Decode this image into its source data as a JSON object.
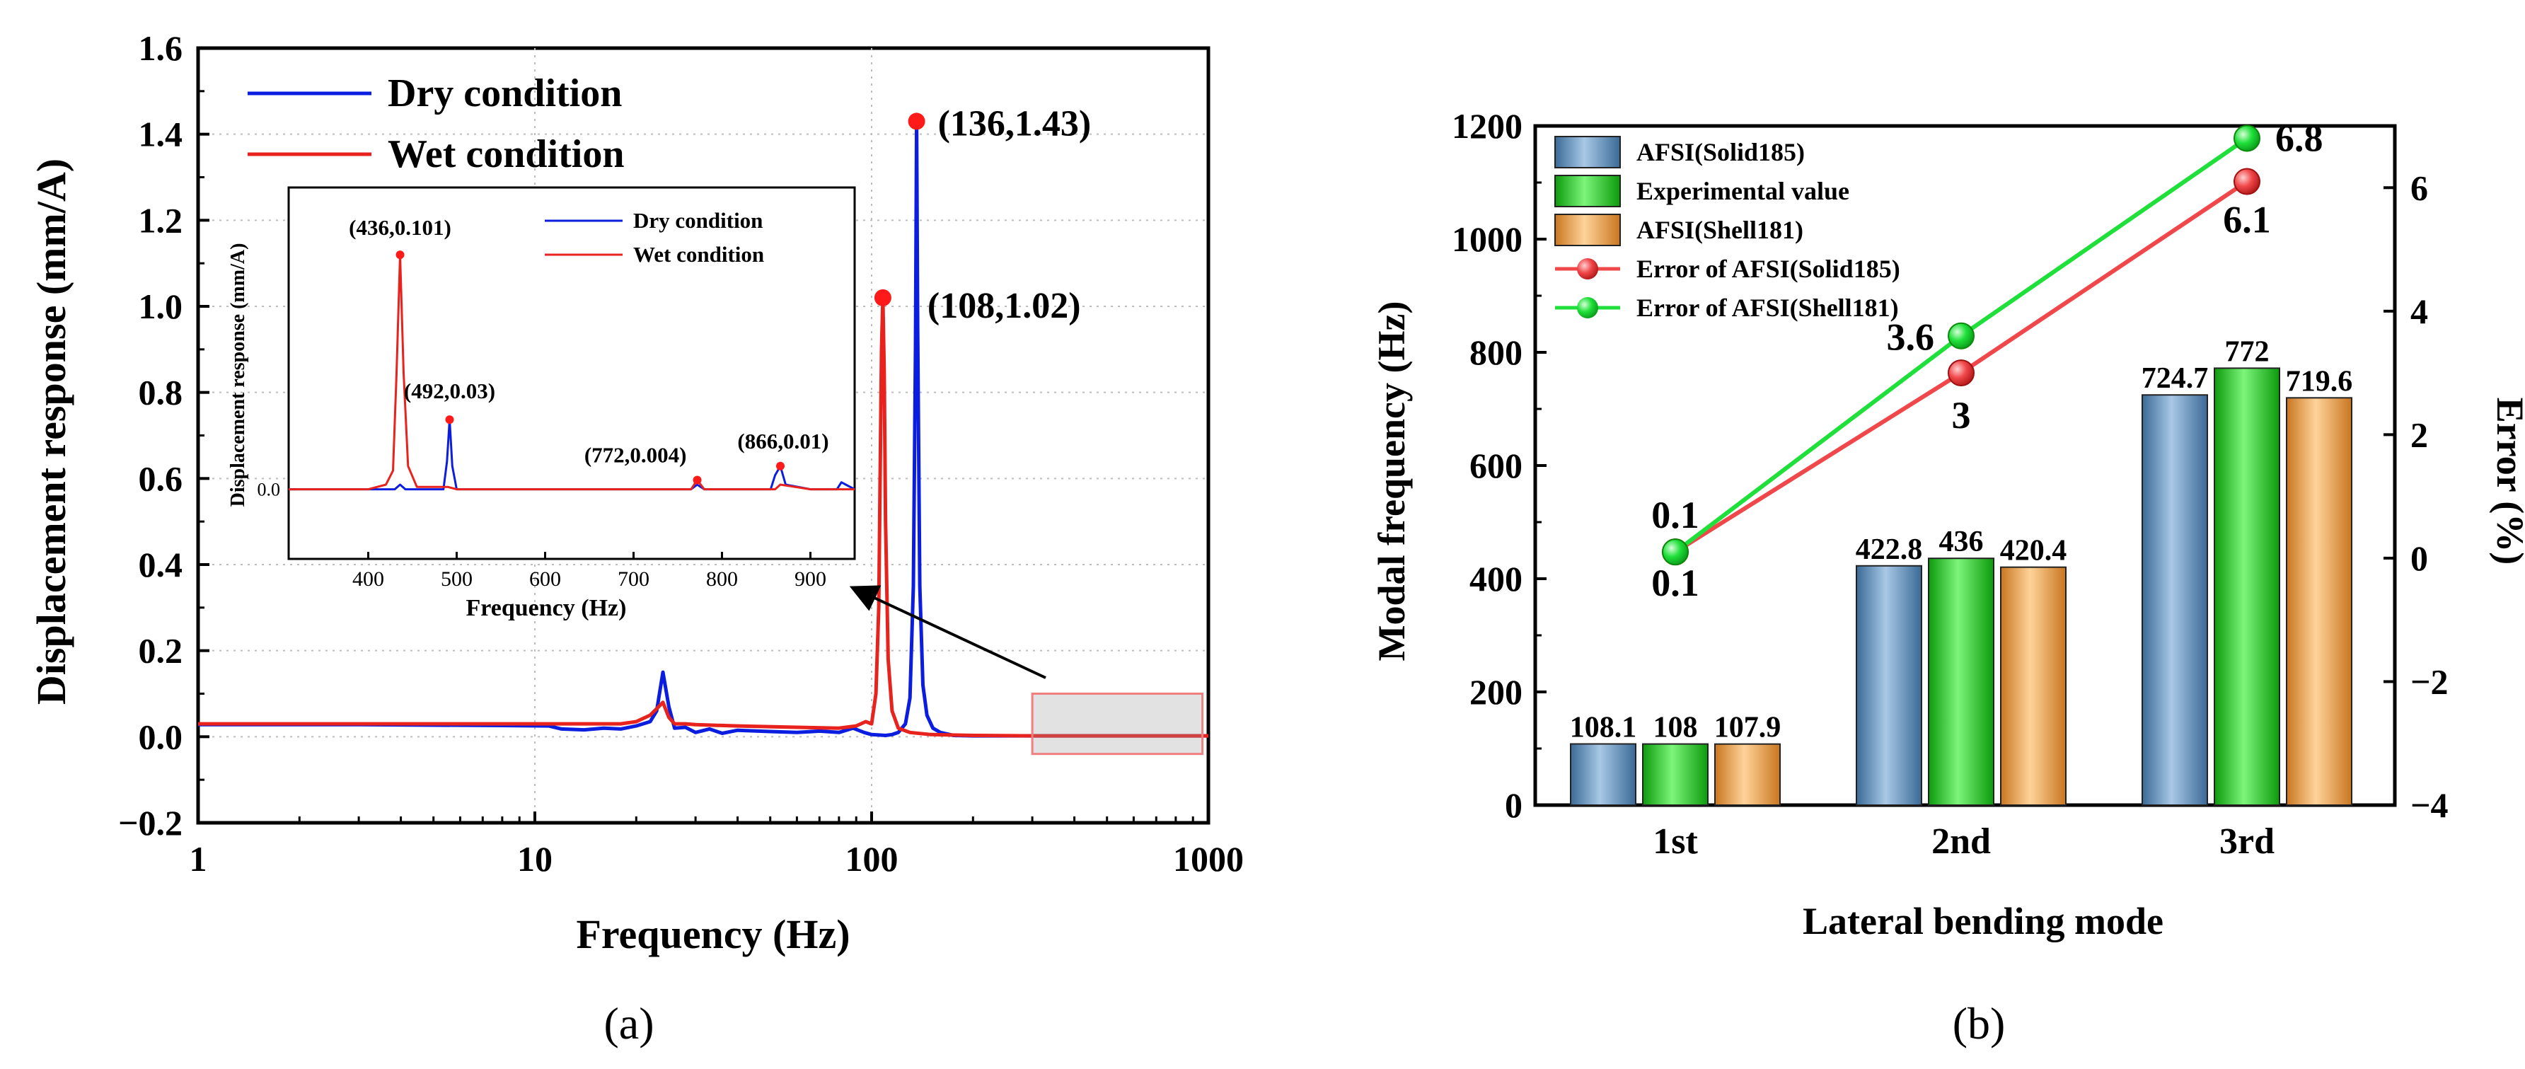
{
  "panel_a": {
    "label": "(a)",
    "chart_data": {
      "type": "line",
      "xscale": "log",
      "xlabel": "Frequency (Hz)",
      "ylabel": "Displacement response (mm/A)",
      "xlim": [
        1,
        1000
      ],
      "ylim": [
        -0.2,
        1.6
      ],
      "xticks": [
        1,
        10,
        100,
        1000
      ],
      "xtick_labels": [
        "1",
        "10",
        "100",
        "1000"
      ],
      "yticks": [
        -0.2,
        0.0,
        0.2,
        0.4,
        0.6,
        0.8,
        1.0,
        1.2,
        1.4,
        1.6
      ],
      "ytick_labels": [
        "−0.2",
        "0.0",
        "0.2",
        "0.4",
        "0.6",
        "0.8",
        "1.0",
        "1.2",
        "1.4",
        "1.6"
      ],
      "legend": [
        "Dry condition",
        "Wet condition"
      ],
      "series": [
        {
          "name": "Dry condition",
          "color": "#0b1ee0",
          "x": [
            1,
            3,
            8,
            11,
            12,
            14,
            16,
            18,
            20,
            22,
            23,
            24,
            25,
            26,
            28,
            30,
            33,
            36,
            40,
            50,
            60,
            70,
            80,
            88,
            95,
            100,
            105,
            110,
            115,
            120,
            126,
            130,
            133,
            135,
            136,
            137,
            139,
            142,
            146,
            152,
            160,
            175,
            200,
            300,
            1000
          ],
          "y": [
            0.028,
            0.028,
            0.026,
            0.025,
            0.018,
            0.016,
            0.02,
            0.018,
            0.025,
            0.035,
            0.06,
            0.15,
            0.07,
            0.02,
            0.022,
            0.01,
            0.018,
            0.008,
            0.015,
            0.012,
            0.01,
            0.013,
            0.01,
            0.02,
            0.01,
            0.005,
            0.004,
            0.003,
            0.005,
            0.01,
            0.03,
            0.09,
            0.35,
            0.9,
            1.43,
            0.95,
            0.35,
            0.12,
            0.05,
            0.02,
            0.01,
            0.003,
            0.002,
            0.002,
            0.002
          ]
        },
        {
          "name": "Wet condition",
          "color": "#e8221c",
          "x": [
            1,
            5,
            10,
            15,
            18,
            20,
            22,
            23,
            24,
            25,
            26,
            28,
            30,
            40,
            60,
            80,
            90,
            96,
            100,
            103,
            105,
            106,
            107,
            108,
            109,
            110,
            112,
            115,
            120,
            130,
            150,
            200,
            300,
            1000
          ],
          "y": [
            0.03,
            0.03,
            0.03,
            0.03,
            0.03,
            0.035,
            0.05,
            0.065,
            0.08,
            0.045,
            0.03,
            0.03,
            0.028,
            0.025,
            0.022,
            0.02,
            0.025,
            0.035,
            0.03,
            0.1,
            0.3,
            0.6,
            0.9,
            1.02,
            0.85,
            0.5,
            0.18,
            0.06,
            0.02,
            0.01,
            0.005,
            0.003,
            0.002,
            0.002
          ]
        }
      ],
      "annotations": [
        {
          "text": "(136,1.43)",
          "x": 136,
          "y": 1.43
        },
        {
          "text": "(108,1.02)",
          "x": 108,
          "y": 1.02
        }
      ],
      "inset": {
        "xlabel": "Frequency (Hz)",
        "ylabel": "Displacement response (mm/A)",
        "xlim": [
          310,
          950
        ],
        "ylim": [
          -0.03,
          0.13
        ],
        "xticks": [
          400,
          500,
          600,
          700,
          800,
          900
        ],
        "xtick_labels": [
          "400",
          "500",
          "600",
          "700",
          "800",
          "900"
        ],
        "ytick_labels": [
          "0.0"
        ],
        "legend": [
          "Dry condition",
          "Wet condition"
        ],
        "series": [
          {
            "name": "Dry condition",
            "color": "#0b1ee0",
            "x": [
              310,
              400,
              430,
              436,
              442,
              460,
              485,
              489,
              492,
              495,
              500,
              560,
              640,
              700,
              765,
              772,
              780,
              855,
              860,
              866,
              872,
              900,
              930,
              935,
              940,
              950
            ],
            "y": [
              0.0,
              0.0,
              0.0,
              0.002,
              0.0,
              0.0,
              0.0,
              0.012,
              0.03,
              0.01,
              0.0,
              0.0,
              0.0,
              0.0,
              0.0,
              0.002,
              0.0,
              0.0,
              0.006,
              0.01,
              0.002,
              0.0,
              0.0,
              0.003,
              0.002,
              0.0
            ]
          },
          {
            "name": "Wet condition",
            "color": "#e8221c",
            "x": [
              310,
              400,
              420,
              428,
              432,
              436,
              440,
              445,
              455,
              490,
              500,
              600,
              700,
              765,
              772,
              780,
              860,
              866,
              900,
              950
            ],
            "y": [
              0.0,
              0.0,
              0.002,
              0.008,
              0.05,
              0.101,
              0.05,
              0.01,
              0.001,
              0.001,
              0.0,
              0.0,
              0.0,
              0.0,
              0.004,
              0.0,
              0.0,
              0.002,
              0.0,
              0.0
            ]
          }
        ],
        "annotations": [
          {
            "text": "(436,0.101)",
            "x": 436,
            "y": 0.101
          },
          {
            "text": "(492,0.03)",
            "x": 492,
            "y": 0.03
          },
          {
            "text": "(772,0.004)",
            "x": 772,
            "y": 0.004
          },
          {
            "text": "(866,0.01)",
            "x": 866,
            "y": 0.01
          }
        ]
      }
    }
  },
  "panel_b": {
    "label": "(b)",
    "chart_data": {
      "type": "bar",
      "categories": [
        "1st",
        "2nd",
        "3rd"
      ],
      "xlabel": "Lateral bending mode",
      "ylabel": "Modal frequency (Hz)",
      "ylim": [
        0,
        1200
      ],
      "yticks": [
        0,
        200,
        400,
        600,
        800,
        1000,
        1200
      ],
      "y2label": "Error (%)",
      "y2lim": [
        -4,
        7
      ],
      "y2ticks": [
        -4,
        -2,
        0,
        2,
        4,
        6
      ],
      "y2tick_labels": [
        "−4",
        "−2",
        "0",
        "2",
        "4",
        "6"
      ],
      "series": [
        {
          "name": "AFSI(Solid185)",
          "values": [
            108.1,
            422.8,
            724.7
          ],
          "labels": [
            "108.1",
            "422.8",
            "724.7"
          ],
          "color": "#5b8fbf"
        },
        {
          "name": "Experimental value",
          "values": [
            108,
            436,
            772
          ],
          "labels": [
            "108",
            "436",
            "772"
          ],
          "color": "#22d31f"
        },
        {
          "name": "AFSI(Shell181)",
          "values": [
            107.9,
            420.4,
            719.6
          ],
          "labels": [
            "107.9",
            "420.4",
            "719.6"
          ],
          "color": "#f0a046"
        }
      ],
      "lines": [
        {
          "name": "Error of AFSI(Solid185)",
          "values": [
            0.1,
            3,
            6.1
          ],
          "labels": [
            "0.1",
            "3",
            "6.1"
          ],
          "color": "#f0474a"
        },
        {
          "name": "Error of AFSI(Shell181)",
          "values": [
            0.1,
            3.6,
            6.8
          ],
          "labels": [
            "0.1",
            "3.6",
            "6.8"
          ],
          "color": "#1fe03a"
        }
      ],
      "legend": [
        "AFSI(Solid185)",
        "Experimental value",
        "AFSI(Shell181)",
        "Error of AFSI(Solid185)",
        "Error of AFSI(Shell181)"
      ]
    }
  }
}
